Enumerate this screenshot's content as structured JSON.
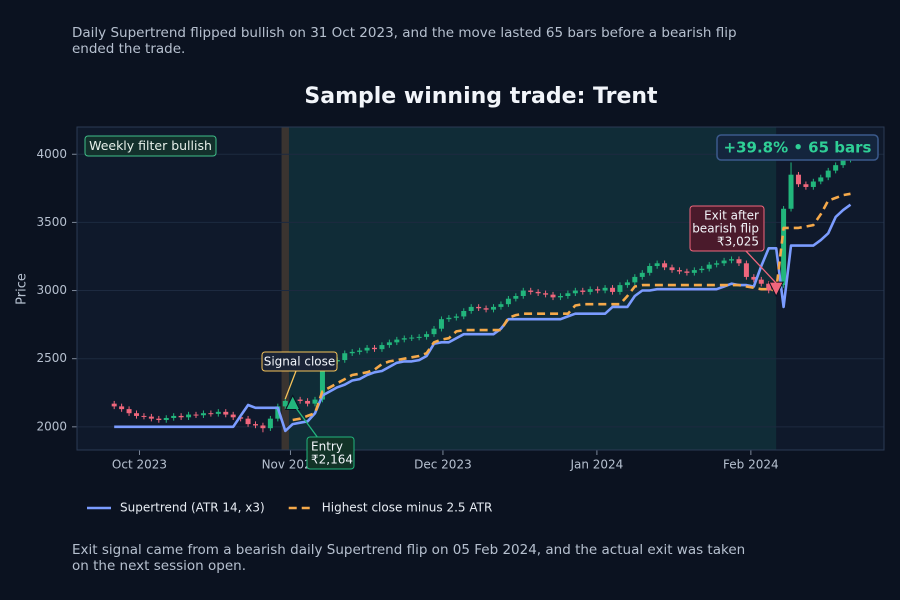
{
  "chart_data": {
    "type": "candlestick",
    "title": "Sample winning trade: Trent",
    "subtitle": "Daily Supertrend flipped bullish on 31 Oct 2023, and the move lasted 65 bars before a bearish flip ended the trade.",
    "footer": "Exit signal came from a bearish daily Supertrend flip on 05 Feb 2024, and the actual exit was taken on the next session open.",
    "ylabel": "Price",
    "categories": [
      null,
      null,
      null,
      null,
      null,
      null,
      null,
      null,
      null,
      null,
      null,
      null,
      null,
      null,
      null,
      null,
      null,
      null,
      null,
      null,
      null,
      null,
      null,
      null,
      null,
      null,
      null,
      null,
      null,
      null,
      null,
      null,
      null,
      null,
      null,
      null,
      null,
      null,
      null,
      null,
      null,
      null,
      null,
      null,
      null,
      null,
      null,
      null,
      null,
      null,
      null,
      null,
      null,
      null,
      null,
      null,
      null,
      null,
      null,
      null,
      null,
      null,
      null,
      null,
      null,
      null,
      null,
      null,
      null,
      null,
      null,
      null,
      null,
      null,
      null,
      null,
      null,
      null,
      null,
      null,
      null,
      null,
      null,
      null,
      null,
      null,
      null,
      null,
      null,
      null,
      null,
      null,
      null,
      null,
      null,
      null,
      null,
      null,
      null,
      null
    ],
    "open": [
      2170,
      2150,
      2130,
      2100,
      2080,
      2075,
      2060,
      2050,
      2065,
      2080,
      2070,
      2090,
      2085,
      2100,
      2095,
      2110,
      2090,
      2070,
      2060,
      2020,
      2010,
      1990,
      2060,
      2150,
      2190,
      2200,
      2190,
      2170,
      2200,
      2450,
      2480,
      2490,
      2540,
      2550,
      2560,
      2580,
      2570,
      2600,
      2620,
      2640,
      2650,
      2655,
      2660,
      2680,
      2720,
      2790,
      2800,
      2810,
      2850,
      2880,
      2870,
      2860,
      2880,
      2900,
      2940,
      2960,
      3000,
      2990,
      2980,
      2970,
      2950,
      2960,
      2980,
      3000,
      2990,
      3010,
      3000,
      3020,
      2990,
      3040,
      3060,
      3100,
      3130,
      3180,
      3200,
      3170,
      3150,
      3140,
      3130,
      3150,
      3160,
      3190,
      3200,
      3220,
      3230,
      3200,
      3100,
      3080,
      3050,
      3000,
      3040,
      3600,
      3850,
      3780,
      3760,
      3800,
      3830,
      3880,
      3920,
      3960
    ],
    "high": [
      2190,
      2170,
      2150,
      2120,
      2100,
      2095,
      2080,
      2085,
      2100,
      2100,
      2110,
      2110,
      2120,
      2120,
      2130,
      2130,
      2110,
      2090,
      2080,
      2040,
      2030,
      2080,
      2170,
      2210,
      2220,
      2220,
      2210,
      2220,
      2470,
      2500,
      2510,
      2560,
      2570,
      2580,
      2600,
      2600,
      2620,
      2640,
      2660,
      2670,
      2675,
      2680,
      2700,
      2740,
      2810,
      2820,
      2830,
      2870,
      2900,
      2900,
      2890,
      2900,
      2920,
      2960,
      2980,
      3020,
      3020,
      3010,
      3000,
      2990,
      2980,
      3000,
      3020,
      3020,
      3030,
      3030,
      3040,
      3040,
      3060,
      3080,
      3120,
      3150,
      3200,
      3220,
      3220,
      3190,
      3170,
      3160,
      3170,
      3180,
      3210,
      3220,
      3240,
      3250,
      3250,
      3220,
      3120,
      3100,
      3070,
      3060,
      3620,
      3940,
      3870,
      3800,
      3820,
      3850,
      3900,
      3940,
      3980,
      4020
    ],
    "low": [
      2130,
      2110,
      2080,
      2060,
      2055,
      2040,
      2030,
      2030,
      2045,
      2050,
      2050,
      2065,
      2065,
      2075,
      2075,
      2070,
      2050,
      2040,
      2000,
      1990,
      1960,
      1970,
      2040,
      2130,
      2170,
      2170,
      2150,
      2150,
      2180,
      2430,
      2460,
      2470,
      2520,
      2530,
      2540,
      2550,
      2550,
      2580,
      2600,
      2620,
      2630,
      2635,
      2640,
      2660,
      2700,
      2770,
      2780,
      2790,
      2830,
      2850,
      2840,
      2840,
      2860,
      2880,
      2920,
      2940,
      2970,
      2960,
      2950,
      2930,
      2930,
      2940,
      2960,
      2970,
      2970,
      2980,
      2980,
      2970,
      2970,
      3020,
      3040,
      3080,
      3110,
      3160,
      3150,
      3130,
      3120,
      3110,
      3110,
      3130,
      3140,
      3170,
      3180,
      3200,
      3180,
      3080,
      3060,
      3030,
      2980,
      2980,
      3020,
      3580,
      3760,
      3740,
      3740,
      3780,
      3810,
      3860,
      3900,
      3940
    ],
    "close": [
      2150,
      2130,
      2100,
      2080,
      2075,
      2060,
      2050,
      2065,
      2080,
      2070,
      2090,
      2085,
      2100,
      2095,
      2110,
      2090,
      2070,
      2060,
      2020,
      2010,
      1990,
      2060,
      2150,
      2190,
      2200,
      2190,
      2170,
      2200,
      2450,
      2480,
      2490,
      2540,
      2550,
      2560,
      2580,
      2570,
      2600,
      2620,
      2640,
      2650,
      2655,
      2660,
      2680,
      2720,
      2790,
      2800,
      2810,
      2850,
      2880,
      2870,
      2860,
      2880,
      2900,
      2940,
      2960,
      3000,
      2990,
      2980,
      2970,
      2950,
      2960,
      2980,
      3000,
      2990,
      3010,
      3000,
      3020,
      2990,
      3040,
      3060,
      3100,
      3130,
      3180,
      3200,
      3170,
      3150,
      3140,
      3130,
      3150,
      3160,
      3190,
      3200,
      3220,
      3230,
      3200,
      3100,
      3080,
      3050,
      3000,
      3040,
      3600,
      3850,
      3780,
      3760,
      3800,
      3830,
      3880,
      3920,
      3960,
      4000
    ],
    "up_color": "#22b67c",
    "down_color": "#f0667c",
    "series": [
      {
        "name": "Supertrend (ATR 14, x3)",
        "color": "#7b9cff",
        "style": "solid",
        "values": [
          2000,
          2000,
          2000,
          2000,
          2000,
          2000,
          2000,
          2000,
          2000,
          2000,
          2000,
          2000,
          2000,
          2000,
          2000,
          2000,
          2000,
          2080,
          2160,
          2140,
          2140,
          2140,
          2140,
          1970,
          2020,
          2030,
          2040,
          2100,
          2230,
          2260,
          2290,
          2310,
          2340,
          2350,
          2380,
          2400,
          2410,
          2440,
          2470,
          2480,
          2480,
          2490,
          2520,
          2610,
          2620,
          2620,
          2650,
          2680,
          2680,
          2680,
          2680,
          2680,
          2720,
          2790,
          2790,
          2790,
          2790,
          2790,
          2790,
          2790,
          2790,
          2810,
          2830,
          2830,
          2830,
          2830,
          2830,
          2880,
          2880,
          2880,
          2960,
          3000,
          3000,
          3010,
          3010,
          3010,
          3010,
          3010,
          3010,
          3010,
          3010,
          3010,
          3030,
          3050,
          3040,
          3040,
          3030,
          3180,
          3310,
          3310,
          2880,
          3330,
          3330,
          3330,
          3330,
          3370,
          3420,
          3540,
          3590,
          3630
        ]
      },
      {
        "name": "Highest close minus 2.5 ATR",
        "color": "#f5a94a",
        "style": "dashed",
        "values": [
          null,
          null,
          null,
          null,
          null,
          null,
          null,
          null,
          null,
          null,
          null,
          null,
          null,
          null,
          null,
          null,
          null,
          null,
          null,
          null,
          null,
          null,
          null,
          null,
          2050,
          2060,
          2080,
          2100,
          2260,
          2290,
          2320,
          2350,
          2380,
          2390,
          2400,
          2420,
          2460,
          2480,
          2490,
          2500,
          2510,
          2520,
          2540,
          2620,
          2640,
          2650,
          2700,
          2710,
          2710,
          2710,
          2710,
          2710,
          2710,
          2800,
          2820,
          2830,
          2830,
          2830,
          2830,
          2830,
          2830,
          2830,
          2890,
          2900,
          2900,
          2900,
          2900,
          2900,
          2900,
          2960,
          3030,
          3040,
          3040,
          3040,
          3040,
          3040,
          3040,
          3040,
          3040,
          3040,
          3040,
          3040,
          3040,
          3040,
          3040,
          3030,
          3020,
          3010,
          3010,
          3000,
          3460,
          3460,
          3460,
          3470,
          3480,
          3560,
          3660,
          3680,
          3700,
          3710
        ]
      }
    ],
    "xlim": [
      -5,
      103.5
    ],
    "xticks": [
      {
        "value": 3.4,
        "label": "Oct 2023"
      },
      {
        "value": 23.7,
        "label": "Nov 2023"
      },
      {
        "value": 44.2,
        "label": "Dec 2023"
      },
      {
        "value": 64.9,
        "label": "Jan 2024"
      },
      {
        "value": 85.6,
        "label": "Feb 2024"
      }
    ],
    "ylim": [
      1830,
      4200
    ],
    "yticks": [
      2000,
      2500,
      3000,
      3500,
      4000
    ],
    "grid": true,
    "filter_label": "Weekly filter bullish",
    "badge": "+39.8% • 65 bars",
    "signal": {
      "x": 23,
      "label": "Signal close"
    },
    "entry": {
      "x": 24,
      "value": 2164,
      "label": "Entry",
      "value_label": "₹2,164"
    },
    "exit": {
      "x": 89,
      "value": 3025,
      "label": [
        "Exit after",
        "bearish flip"
      ],
      "value_label": "₹3,025"
    },
    "legend": "lower-left"
  }
}
